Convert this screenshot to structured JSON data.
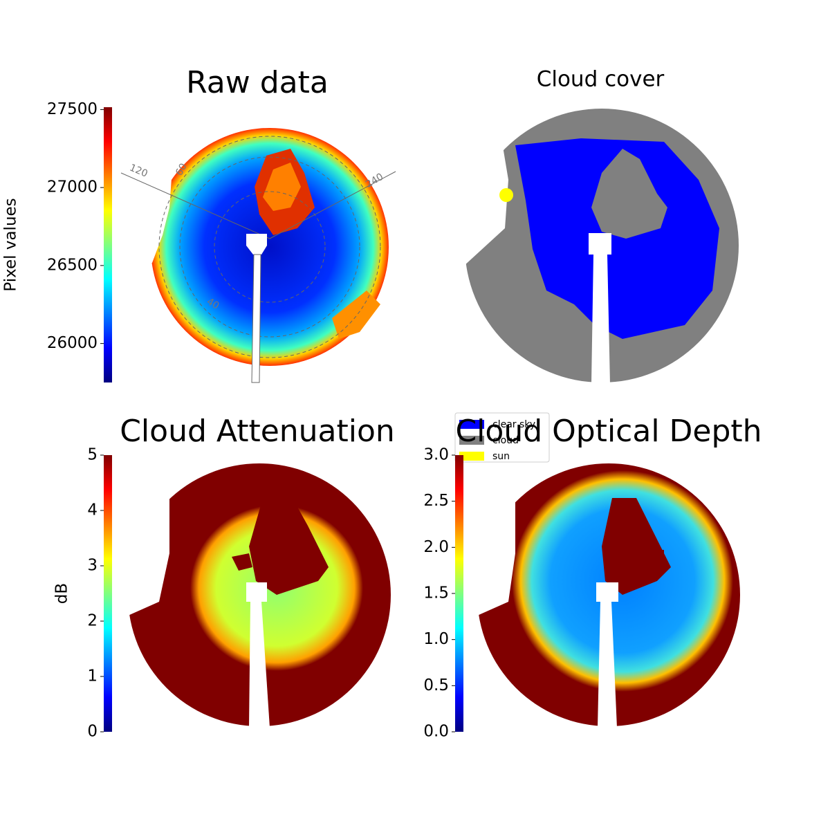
{
  "chart_data": [
    {
      "type": "image",
      "title": "Raw data",
      "ylabel": "Pixel values",
      "colormap": "jet",
      "ylim": [
        25750,
        27515
      ],
      "yticks": [
        26000,
        26500,
        27000,
        27500
      ],
      "annotations": [
        "120",
        "60",
        "240",
        "40"
      ]
    },
    {
      "type": "image",
      "title": "Cloud cover",
      "series": [
        {
          "name": "clear sky",
          "color": "#0000ff"
        },
        {
          "name": "cloud",
          "color": "#808080"
        },
        {
          "name": "sun",
          "color": "#ffff00"
        }
      ]
    },
    {
      "type": "image",
      "title": "Cloud Attenuation",
      "ylabel": "dB",
      "colormap": "jet",
      "ylim": [
        0,
        5
      ],
      "yticks": [
        0,
        1,
        2,
        3,
        4,
        5
      ]
    },
    {
      "type": "image",
      "title": "Cloud Optical Depth",
      "colormap": "jet",
      "ylim": [
        0,
        3
      ],
      "yticks": [
        {
          "value": 0,
          "label": "0.0"
        },
        0.5,
        {
          "value": 1,
          "label": "1.0"
        },
        1.5,
        {
          "value": 2,
          "label": "2.0"
        },
        2.5,
        {
          "value": 3,
          "label": "3.0"
        }
      ]
    }
  ]
}
